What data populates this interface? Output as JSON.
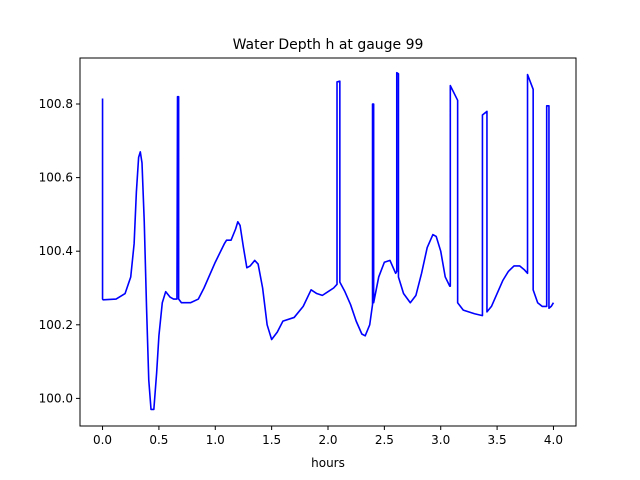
{
  "chart_data": {
    "type": "line",
    "title": "Water Depth h at gauge 99",
    "xlabel": "hours",
    "ylabel": "",
    "xlim": [
      -0.2,
      4.2
    ],
    "ylim": [
      99.925,
      100.925
    ],
    "xticks": [
      0.0,
      0.5,
      1.0,
      1.5,
      2.0,
      2.5,
      3.0,
      3.5,
      4.0
    ],
    "xtick_labels": [
      "0.0",
      "0.5",
      "1.0",
      "1.5",
      "2.0",
      "2.5",
      "3.0",
      "3.5",
      "4.0"
    ],
    "yticks": [
      100.0,
      100.2,
      100.4,
      100.6,
      100.8
    ],
    "ytick_labels": [
      "100.0",
      "100.2",
      "100.4",
      "100.6",
      "100.8"
    ],
    "grid": false,
    "series": [
      {
        "color": "#0000ff",
        "x": [
          0.0,
          0.0,
          0.005,
          0.12,
          0.2,
          0.25,
          0.28,
          0.3,
          0.32,
          0.335,
          0.35,
          0.37,
          0.39,
          0.41,
          0.43,
          0.455,
          0.48,
          0.5,
          0.53,
          0.56,
          0.6,
          0.63,
          0.66,
          0.665,
          0.665,
          0.675,
          0.675,
          0.7,
          0.78,
          0.85,
          0.9,
          1.0,
          1.08,
          1.1,
          1.14,
          1.18,
          1.2,
          1.22,
          1.25,
          1.28,
          1.31,
          1.35,
          1.38,
          1.42,
          1.46,
          1.5,
          1.55,
          1.6,
          1.7,
          1.78,
          1.85,
          1.9,
          1.95,
          2.0,
          2.05,
          2.08,
          2.08,
          2.105,
          2.105,
          2.15,
          2.2,
          2.25,
          2.3,
          2.33,
          2.37,
          2.395,
          2.395,
          2.405,
          2.405,
          2.45,
          2.5,
          2.55,
          2.6,
          2.61,
          2.61,
          2.625,
          2.625,
          2.67,
          2.73,
          2.78,
          2.83,
          2.88,
          2.93,
          2.96,
          3.0,
          3.04,
          3.08,
          3.085,
          3.085,
          3.15,
          3.15,
          3.2,
          3.3,
          3.37,
          3.37,
          3.41,
          3.41,
          3.45,
          3.5,
          3.55,
          3.6,
          3.65,
          3.7,
          3.74,
          3.77,
          3.77,
          3.82,
          3.82,
          3.86,
          3.9,
          3.94,
          3.94,
          3.96,
          3.96,
          3.98,
          4.0
        ],
        "y": [
          100.815,
          100.27,
          100.268,
          100.27,
          100.285,
          100.33,
          100.42,
          100.56,
          100.655,
          100.67,
          100.64,
          100.48,
          100.25,
          100.05,
          99.97,
          99.97,
          100.07,
          100.17,
          100.26,
          100.29,
          100.275,
          100.27,
          100.27,
          100.82,
          100.82,
          100.82,
          100.27,
          100.26,
          100.26,
          100.27,
          100.3,
          100.37,
          100.42,
          100.43,
          100.43,
          100.46,
          100.48,
          100.47,
          100.41,
          100.355,
          100.36,
          100.375,
          100.365,
          100.3,
          100.2,
          100.16,
          100.18,
          100.21,
          100.22,
          100.25,
          100.295,
          100.285,
          100.28,
          100.29,
          100.3,
          100.31,
          100.86,
          100.862,
          100.316,
          100.29,
          100.255,
          100.21,
          100.175,
          100.17,
          100.2,
          100.255,
          100.8,
          100.8,
          100.26,
          100.33,
          100.37,
          100.375,
          100.34,
          100.345,
          100.885,
          100.882,
          100.33,
          100.285,
          100.26,
          100.28,
          100.34,
          100.41,
          100.445,
          100.44,
          100.4,
          100.33,
          100.305,
          100.305,
          100.85,
          100.81,
          100.26,
          100.24,
          100.23,
          100.225,
          100.77,
          100.78,
          100.235,
          100.25,
          100.285,
          100.32,
          100.345,
          100.36,
          100.36,
          100.35,
          100.34,
          100.88,
          100.84,
          100.295,
          100.26,
          100.25,
          100.25,
          100.795,
          100.795,
          100.245,
          100.25,
          100.26
        ]
      }
    ]
  }
}
